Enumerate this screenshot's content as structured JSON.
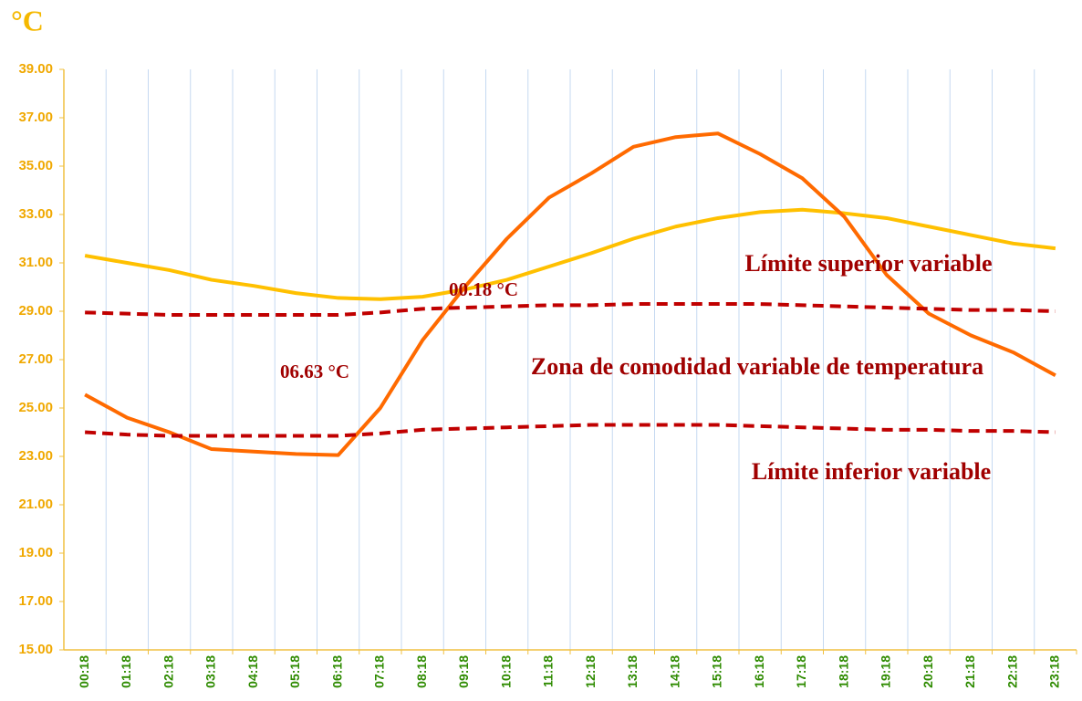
{
  "chart_data": {
    "type": "line",
    "ylabel": "°C",
    "categories": [
      "00:18",
      "01:18",
      "02:18",
      "03:18",
      "04:18",
      "05:18",
      "06:18",
      "07:18",
      "08:18",
      "09:18",
      "10:18",
      "11:18",
      "12:18",
      "13:18",
      "14:18",
      "15:18",
      "16:18",
      "17:18",
      "18:18",
      "19:18",
      "20:18",
      "21:18",
      "22:18",
      "23:18"
    ],
    "series": [
      {
        "color": "#ffc000",
        "dashed": false,
        "values": [
          31.3,
          31.0,
          30.7,
          30.3,
          30.05,
          29.75,
          29.55,
          29.5,
          29.6,
          29.9,
          30.3,
          30.85,
          31.4,
          32.0,
          32.5,
          32.85,
          33.1,
          33.2,
          33.05,
          32.85,
          32.5,
          32.15,
          31.8,
          31.6
        ]
      },
      {
        "color": "#ff6a00",
        "dashed": false,
        "values": [
          25.55,
          24.6,
          24.0,
          23.3,
          23.2,
          23.1,
          23.05,
          25.0,
          27.8,
          30.0,
          32.0,
          33.7,
          34.7,
          35.8,
          36.2,
          36.35,
          35.5,
          34.5,
          32.9,
          30.5,
          28.9,
          28.0,
          27.3,
          26.35
        ]
      },
      {
        "color": "#c00000",
        "dashed": true,
        "values": [
          28.95,
          28.9,
          28.85,
          28.85,
          28.85,
          28.85,
          28.85,
          28.95,
          29.1,
          29.15,
          29.2,
          29.25,
          29.25,
          29.3,
          29.3,
          29.3,
          29.3,
          29.25,
          29.2,
          29.15,
          29.1,
          29.05,
          29.05,
          29.0
        ]
      },
      {
        "color": "#c00000",
        "dashed": true,
        "values": [
          24.0,
          23.9,
          23.85,
          23.85,
          23.85,
          23.85,
          23.85,
          23.95,
          24.1,
          24.15,
          24.2,
          24.25,
          24.3,
          24.3,
          24.3,
          24.3,
          24.25,
          24.2,
          24.15,
          24.1,
          24.1,
          24.05,
          24.05,
          24.0
        ]
      }
    ],
    "annotations": [
      "Límite superior variable",
      "Zona de comodidad variable de temperatura",
      "Límite inferior variable",
      "00.18 °C",
      "06.63 °C"
    ],
    "ylim": [
      15,
      39
    ],
    "yticks": [
      {
        "value": 15,
        "label": "15.00"
      },
      {
        "value": 17,
        "label": "17.00"
      },
      {
        "value": 19,
        "label": "19.00"
      },
      {
        "value": 21,
        "label": "21.00"
      },
      {
        "value": 23,
        "label": "23.00"
      },
      {
        "value": 25,
        "label": "25.00"
      },
      {
        "value": 27,
        "label": "27.00"
      },
      {
        "value": 29,
        "label": "29.00"
      },
      {
        "value": 31,
        "label": "31.00"
      },
      {
        "value": 33,
        "label": "33.00"
      },
      {
        "value": 35,
        "label": "35.00"
      },
      {
        "value": 37,
        "label": "37.00"
      },
      {
        "value": 39,
        "label": "39.00"
      }
    ],
    "grid": true
  }
}
